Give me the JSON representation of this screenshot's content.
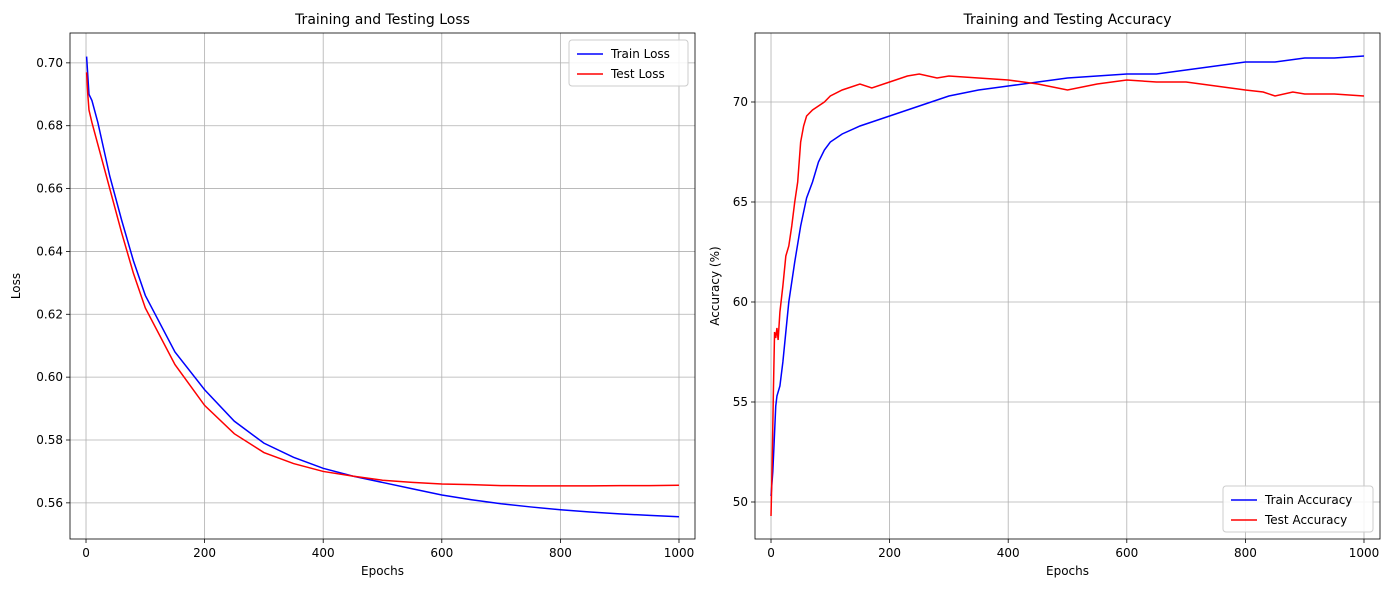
{
  "chart_data": [
    {
      "type": "line",
      "title": "Training and Testing Loss",
      "xlabel": "Epochs",
      "ylabel": "Loss",
      "xlim": [
        -27,
        1027
      ],
      "ylim": [
        0.5485,
        0.7095
      ],
      "xticks": [
        0,
        200,
        400,
        600,
        800,
        1000
      ],
      "yticks": [
        0.56,
        0.58,
        0.6,
        0.62,
        0.64,
        0.66,
        0.68,
        0.7
      ],
      "yticks_labels": [
        "0.56",
        "0.58",
        "0.60",
        "0.62",
        "0.64",
        "0.66",
        "0.68",
        "0.70"
      ],
      "grid": true,
      "legend_position": "top-right",
      "series": [
        {
          "name": "Train Loss",
          "color": "#0000ff",
          "x": [
            1,
            3,
            5,
            10,
            20,
            40,
            60,
            80,
            100,
            150,
            200,
            250,
            300,
            350,
            400,
            450,
            500,
            550,
            600,
            650,
            700,
            750,
            800,
            850,
            900,
            950,
            1000
          ],
          "y": [
            0.702,
            0.696,
            0.69,
            0.688,
            0.681,
            0.664,
            0.65,
            0.637,
            0.626,
            0.608,
            0.596,
            0.586,
            0.579,
            0.5745,
            0.571,
            0.5685,
            0.5665,
            0.5645,
            0.5625,
            0.561,
            0.5597,
            0.5587,
            0.5578,
            0.5571,
            0.5565,
            0.556,
            0.5556
          ]
        },
        {
          "name": "Test Loss",
          "color": "#ff0000",
          "x": [
            1,
            3,
            5,
            10,
            20,
            40,
            60,
            80,
            100,
            150,
            200,
            250,
            300,
            350,
            400,
            450,
            500,
            550,
            600,
            650,
            700,
            750,
            800,
            850,
            900,
            950,
            1000
          ],
          "y": [
            0.697,
            0.69,
            0.685,
            0.681,
            0.674,
            0.66,
            0.646,
            0.633,
            0.622,
            0.604,
            0.591,
            0.582,
            0.576,
            0.5725,
            0.57,
            0.5685,
            0.5672,
            0.5665,
            0.566,
            0.5658,
            0.5655,
            0.5654,
            0.5654,
            0.5654,
            0.5655,
            0.5655,
            0.5656
          ]
        }
      ]
    },
    {
      "type": "line",
      "title": "Training and Testing Accuracy",
      "xlabel": "Epochs",
      "ylabel": "Accuracy (%)",
      "xlim": [
        -27,
        1027
      ],
      "ylim": [
        48.15,
        73.45
      ],
      "xticks": [
        0,
        200,
        400,
        600,
        800,
        1000
      ],
      "yticks": [
        50,
        55,
        60,
        65,
        70
      ],
      "grid": true,
      "legend_position": "bottom-right",
      "series": [
        {
          "name": "Train Accuracy",
          "color": "#0000ff",
          "x": [
            0,
            3,
            5,
            8,
            10,
            15,
            20,
            30,
            40,
            50,
            60,
            70,
            80,
            90,
            100,
            120,
            150,
            180,
            200,
            250,
            300,
            350,
            400,
            450,
            500,
            550,
            600,
            650,
            700,
            750,
            800,
            850,
            900,
            950,
            1000
          ],
          "y": [
            50.3,
            51.5,
            52.8,
            54.8,
            55.3,
            55.8,
            57.0,
            60.0,
            62.0,
            63.8,
            65.2,
            66.0,
            67.0,
            67.6,
            68.0,
            68.4,
            68.8,
            69.1,
            69.3,
            69.8,
            70.3,
            70.6,
            70.8,
            71.0,
            71.2,
            71.3,
            71.4,
            71.4,
            71.6,
            71.8,
            72.0,
            72.0,
            72.2,
            72.2,
            72.3
          ]
        },
        {
          "name": "Test Accuracy",
          "color": "#ff0000",
          "x": [
            0,
            2,
            4,
            6,
            8,
            10,
            12,
            15,
            20,
            25,
            30,
            35,
            40,
            45,
            50,
            55,
            60,
            70,
            80,
            90,
            100,
            120,
            150,
            170,
            200,
            230,
            250,
            280,
            300,
            350,
            400,
            450,
            500,
            550,
            600,
            650,
            700,
            750,
            800,
            830,
            850,
            880,
            900,
            950,
            1000
          ],
          "y": [
            49.3,
            52.0,
            55.5,
            58.5,
            58.2,
            58.7,
            58.1,
            59.5,
            60.8,
            62.3,
            62.8,
            63.8,
            65.0,
            66.0,
            68.0,
            68.8,
            69.3,
            69.6,
            69.8,
            70.0,
            70.3,
            70.6,
            70.9,
            70.7,
            71.0,
            71.3,
            71.4,
            71.2,
            71.3,
            71.2,
            71.1,
            70.9,
            70.6,
            70.9,
            71.1,
            71.0,
            71.0,
            70.8,
            70.6,
            70.5,
            70.3,
            70.5,
            70.4,
            70.4,
            70.3
          ]
        }
      ]
    }
  ]
}
